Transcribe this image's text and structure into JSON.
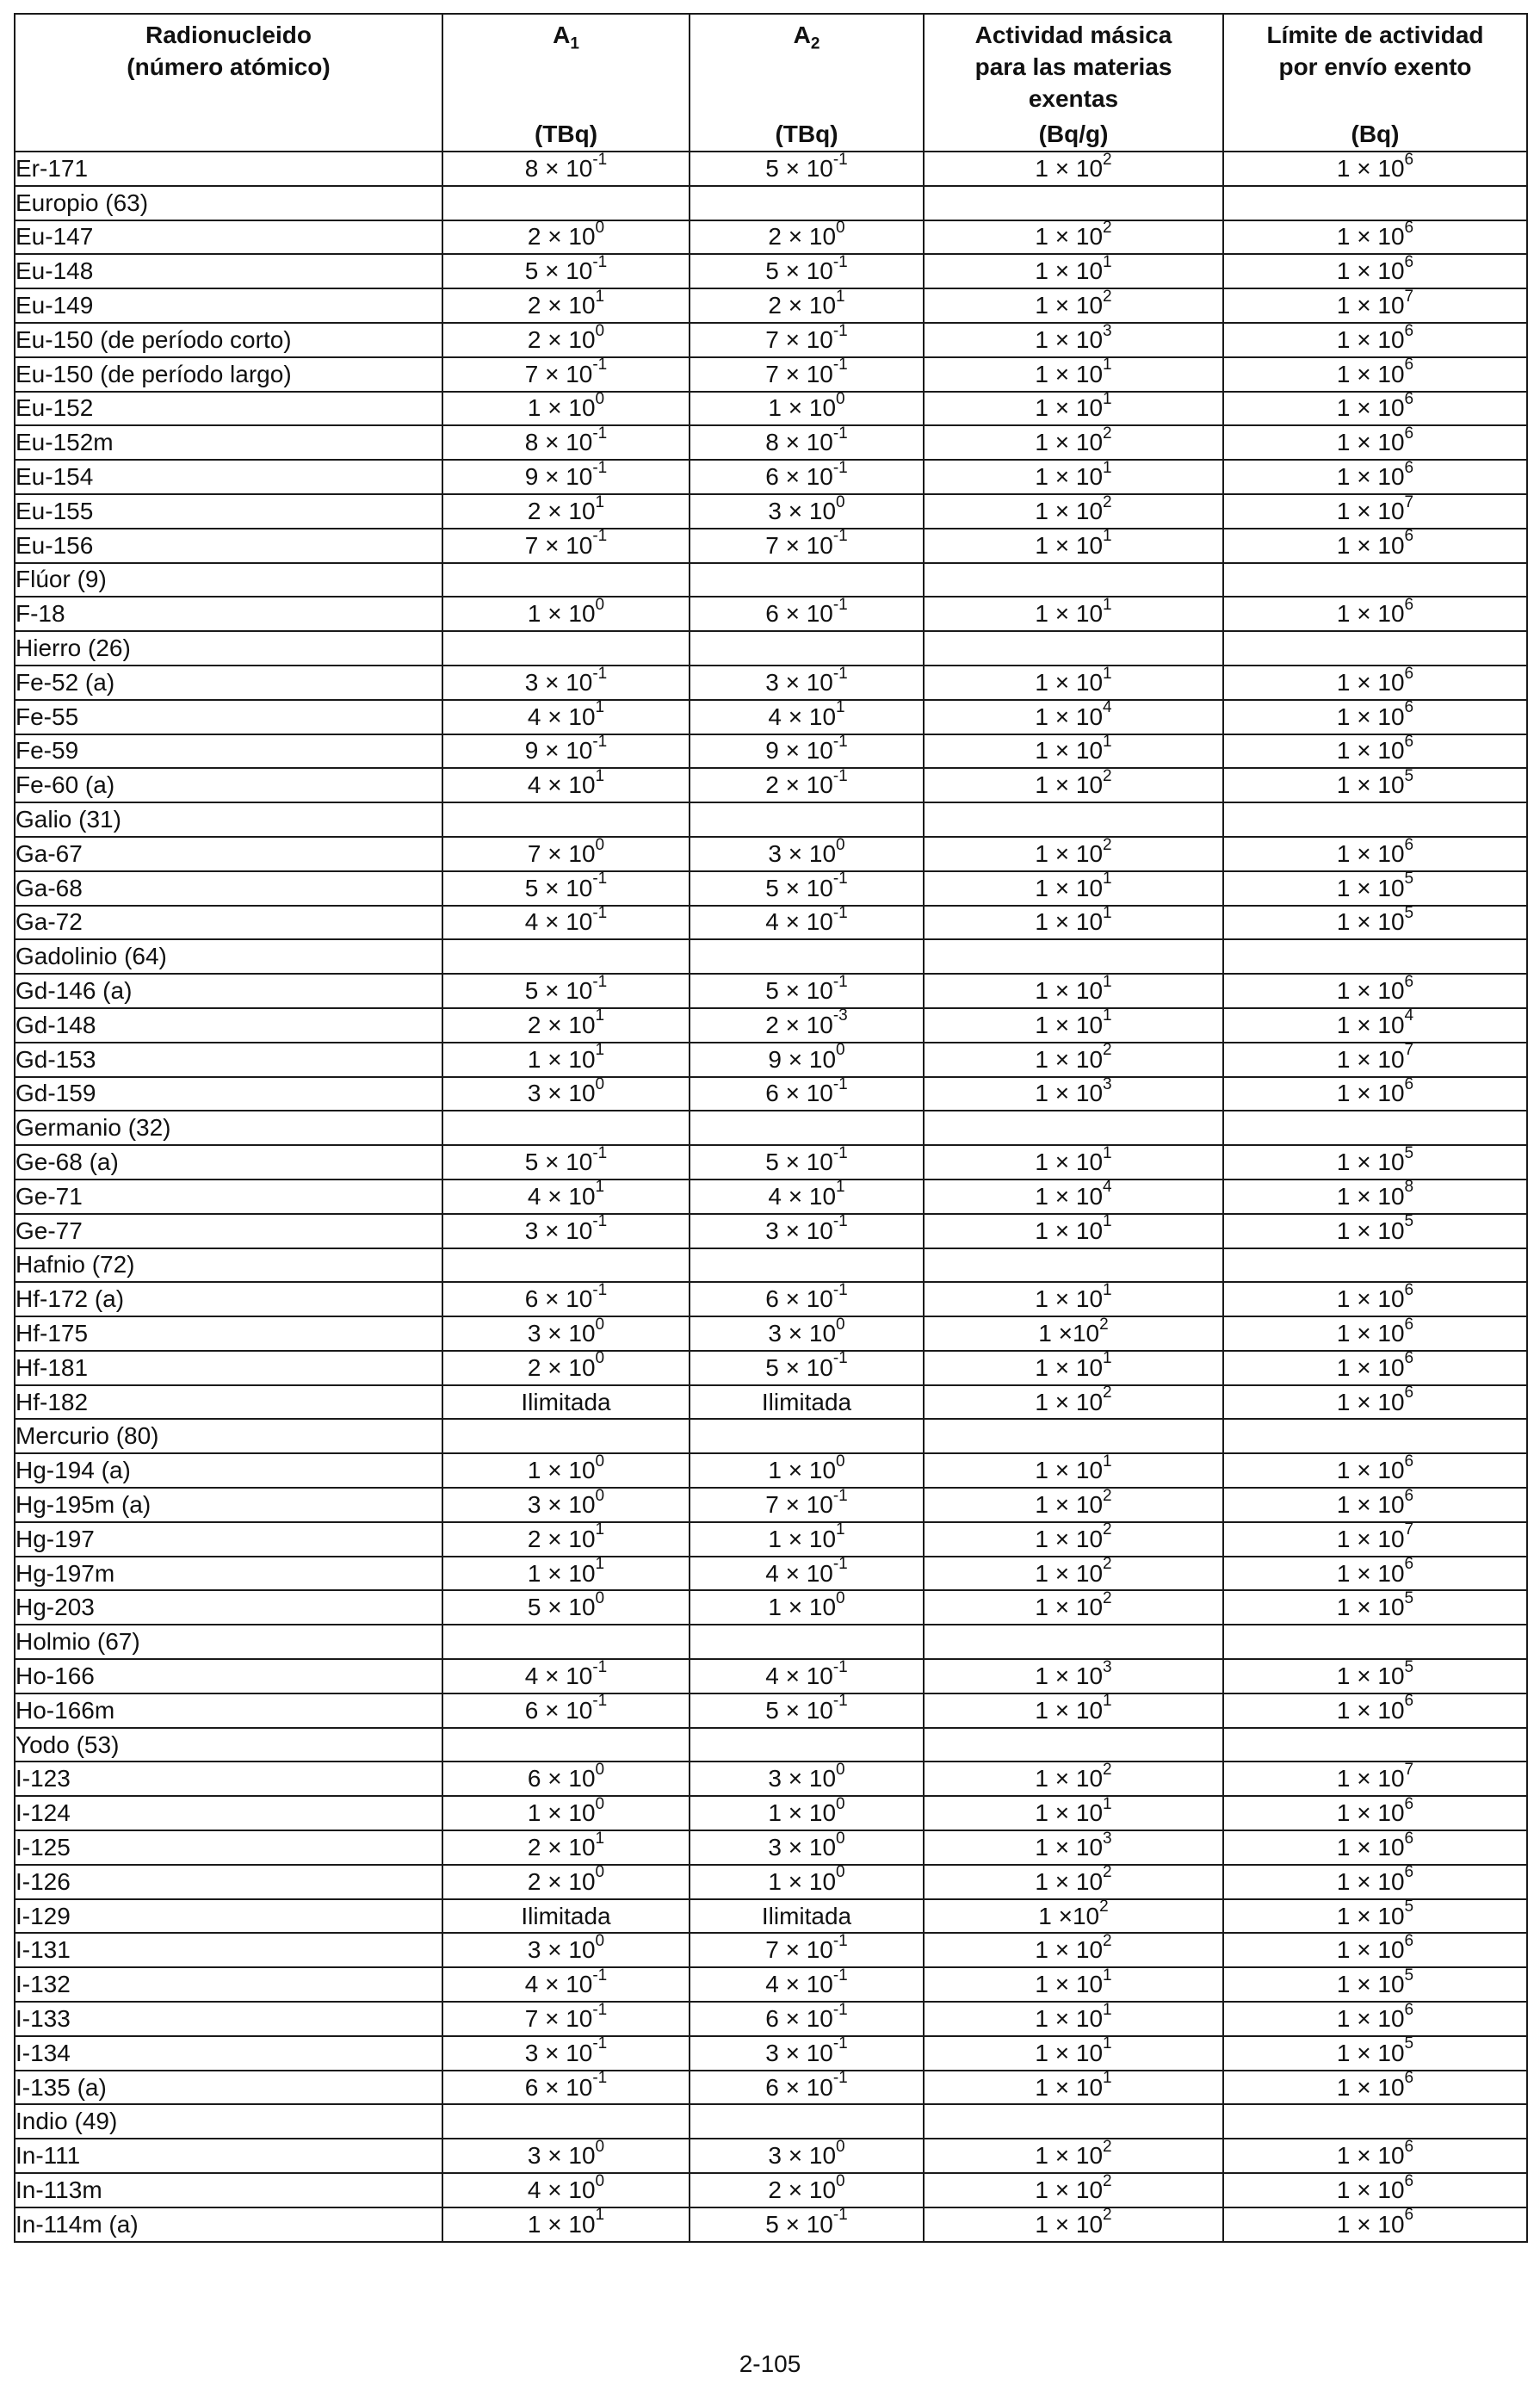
{
  "headers": {
    "nuclide": [
      "Radionucleido",
      "(número atómico)"
    ],
    "a1": {
      "base": "A",
      "sub": "1",
      "unit": "(TBq)"
    },
    "a2": {
      "base": "A",
      "sub": "2",
      "unit": "(TBq)"
    },
    "mass_activity": {
      "lines": [
        "Actividad másica",
        "para las materias",
        "exentas"
      ],
      "unit": "(Bq/g)"
    },
    "limit": {
      "lines": [
        "Límite de actividad",
        "por envío exento"
      ],
      "unit": "(Bq)"
    }
  },
  "rows": [
    [
      "Er-171",
      "8 × 10^-1",
      "5 × 10^-1",
      "1 × 10^2",
      "1 × 10^6"
    ],
    [
      "Europio (63)"
    ],
    [
      "Eu-147",
      "2 × 10^0",
      "2 × 10^0",
      "1 × 10^2",
      "1 × 10^6"
    ],
    [
      "Eu-148",
      "5 × 10^-1",
      "5 × 10^-1",
      "1 × 10^1",
      "1 × 10^6"
    ],
    [
      "Eu-149",
      "2 × 10^1",
      "2 × 10^1",
      "1 × 10^2",
      "1 × 10^7"
    ],
    [
      "Eu-150 (de período corto)",
      "2 × 10^0",
      "7 × 10^-1",
      "1 × 10^3",
      "1 × 10^6"
    ],
    [
      "Eu-150 (de período largo)",
      "7 × 10^-1",
      "7 × 10^-1",
      "1 × 10^1",
      "1 × 10^6"
    ],
    [
      "Eu-152",
      "1 × 10^0",
      "1 × 10^0",
      "1 × 10^1",
      "1 × 10^6"
    ],
    [
      "Eu-152m",
      "8 × 10^-1",
      "8 × 10^-1",
      "1 × 10^2",
      "1 × 10^6"
    ],
    [
      "Eu-154",
      "9 × 10^-1",
      "6 × 10^-1",
      "1 × 10^1",
      "1 × 10^6"
    ],
    [
      "Eu-155",
      "2 × 10^1",
      "3 × 10^0",
      "1 × 10^2",
      "1 × 10^7"
    ],
    [
      "Eu-156",
      "7 × 10^-1",
      "7 × 10^-1",
      "1 × 10^1",
      "1 × 10^6"
    ],
    [
      "Flúor (9)"
    ],
    [
      "F-18",
      "1 × 10^0",
      "6 × 10^-1",
      "1 × 10^1",
      "1 × 10^6"
    ],
    [
      "Hierro (26)"
    ],
    [
      "Fe-52 (a)",
      "3 × 10^-1",
      "3 × 10^-1",
      "1 × 10^1",
      "1 × 10^6"
    ],
    [
      "Fe-55",
      "4 × 10^1",
      "4 × 10^1",
      "1 × 10^4",
      "1 × 10^6"
    ],
    [
      "Fe-59",
      "9 × 10^-1",
      "9 × 10^-1",
      "1 × 10^1",
      "1 × 10^6"
    ],
    [
      "Fe-60 (a)",
      "4 × 10^1",
      "2 × 10^-1",
      "1 × 10^2",
      "1 × 10^5"
    ],
    [
      "Galio (31)"
    ],
    [
      "Ga-67",
      "7 × 10^0",
      "3 × 10^0",
      "1 × 10^2",
      "1 × 10^6"
    ],
    [
      "Ga-68",
      "5 × 10^-1",
      "5 × 10^-1",
      "1 × 10^1",
      "1 × 10^5"
    ],
    [
      "Ga-72",
      "4 × 10^-1",
      "4 × 10^-1",
      "1 × 10^1",
      "1 × 10^5"
    ],
    [
      "Gadolinio (64)"
    ],
    [
      "Gd-146 (a)",
      "5 × 10^-1",
      "5 × 10^-1",
      "1 × 10^1",
      "1 × 10^6"
    ],
    [
      "Gd-148",
      "2 × 10^1",
      "2 × 10^-3",
      "1 × 10^1",
      "1 × 10^4"
    ],
    [
      "Gd-153",
      "1 × 10^1",
      "9 × 10^0",
      "1 × 10^2",
      "1 × 10^7"
    ],
    [
      "Gd-159",
      "3 × 10^0",
      "6 × 10^-1",
      "1 × 10^3",
      "1 × 10^6"
    ],
    [
      "Germanio (32)"
    ],
    [
      "Ge-68 (a)",
      "5 × 10^-1",
      "5 × 10^-1",
      "1 × 10^1",
      "1 × 10^5"
    ],
    [
      "Ge-71",
      "4 × 10^1",
      "4 × 10^1",
      "1 × 10^4",
      "1 × 10^8"
    ],
    [
      "Ge-77",
      "3 × 10^-1",
      "3 × 10^-1",
      "1 × 10^1",
      "1 × 10^5"
    ],
    [
      "Hafnio (72)"
    ],
    [
      "Hf-172 (a)",
      "6 × 10^-1",
      "6 × 10^-1",
      "1 × 10^1",
      "1 × 10^6"
    ],
    [
      "Hf-175",
      "3 × 10^0",
      "3 × 10^0",
      "1 ×10^2",
      "1 × 10^6"
    ],
    [
      "Hf-181",
      "2 × 10^0",
      "5 × 10^-1",
      "1 × 10^1",
      "1 × 10^6"
    ],
    [
      "Hf-182",
      "Ilimitada",
      "Ilimitada",
      "1 × 10^2",
      "1 × 10^6"
    ],
    [
      "Mercurio (80)"
    ],
    [
      "Hg-194 (a)",
      "1 × 10^0",
      "1 × 10^0",
      "1 × 10^1",
      "1 × 10^6"
    ],
    [
      "Hg-195m (a)",
      "3 × 10^0",
      "7 × 10^-1",
      "1 × 10^2",
      "1 × 10^6"
    ],
    [
      "Hg-197",
      "2 × 10^1",
      "1 × 10^1",
      "1 × 10^2",
      "1 × 10^7"
    ],
    [
      "Hg-197m",
      "1 × 10^1",
      "4 × 10^-1",
      "1 × 10^2",
      "1 × 10^6"
    ],
    [
      "Hg-203",
      "5 × 10^0",
      "1 × 10^0",
      "1 × 10^2",
      "1 × 10^5"
    ],
    [
      "Holmio (67)"
    ],
    [
      "Ho-166",
      "4 × 10^-1",
      "4 × 10^-1",
      "1 × 10^3",
      "1 × 10^5"
    ],
    [
      "Ho-166m",
      "6 × 10^-1",
      "5 × 10^-1",
      "1 × 10^1",
      "1 × 10^6"
    ],
    [
      "Yodo (53)"
    ],
    [
      "I-123",
      "6 × 10^0",
      "3 × 10^0",
      "1 × 10^2",
      "1 × 10^7"
    ],
    [
      "I-124",
      "1 × 10^0",
      "1 × 10^0",
      "1 × 10^1",
      "1 × 10^6"
    ],
    [
      "I-125",
      "2 × 10^1",
      "3 × 10^0",
      "1 × 10^3",
      "1 × 10^6"
    ],
    [
      "I-126",
      "2 × 10^0",
      "1 × 10^0",
      "1 × 10^2",
      "1 × 10^6"
    ],
    [
      "I-129",
      "Ilimitada",
      "Ilimitada",
      "1 ×10^2",
      "1 × 10^5"
    ],
    [
      "I-131",
      "3 × 10^0",
      "7 × 10^-1",
      "1 × 10^2",
      "1 × 10^6"
    ],
    [
      "I-132",
      "4 × 10^-1",
      "4 × 10^-1",
      "1 × 10^1",
      "1 × 10^5"
    ],
    [
      "I-133",
      "7 × 10^-1",
      "6 × 10^-1",
      "1 × 10^1",
      "1 × 10^6"
    ],
    [
      "I-134",
      "3 × 10^-1",
      "3 × 10^-1",
      "1 × 10^1",
      "1 × 10^5"
    ],
    [
      "I-135 (a)",
      "6 × 10^-1",
      "6 × 10^-1",
      "1 × 10^1",
      "1 × 10^6"
    ],
    [
      "Indio (49)"
    ],
    [
      "In-111",
      "3 × 10^0",
      "3 × 10^0",
      "1 × 10^2",
      "1 × 10^6"
    ],
    [
      "In-113m",
      "4 × 10^0",
      "2 × 10^0",
      "1 × 10^2",
      "1 × 10^6"
    ],
    [
      "In-114m (a)",
      "1 × 10^1",
      "5 × 10^-1",
      "1 × 10^2",
      "1 × 10^6"
    ]
  ],
  "footer": {
    "page_number": "2-105"
  }
}
